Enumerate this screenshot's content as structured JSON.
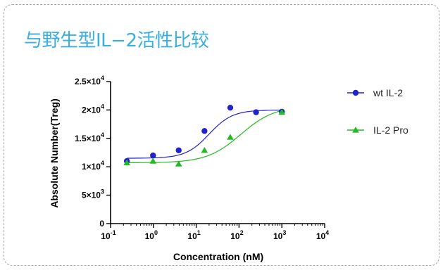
{
  "heading": "与野生型IL−2活性比较",
  "chart_data": {
    "type": "scatter",
    "xlabel": "Concentration (nM)",
    "ylabel": "Absolute Number(Treg)",
    "x_scale": "log",
    "xlim": [
      0.1,
      10000
    ],
    "ylim": [
      0,
      25000
    ],
    "x_ticks": [
      {
        "base": "10",
        "exp": "-1"
      },
      {
        "base": "10",
        "exp": "0"
      },
      {
        "base": "10",
        "exp": "1"
      },
      {
        "base": "10",
        "exp": "2"
      },
      {
        "base": "10",
        "exp": "3"
      },
      {
        "base": "10",
        "exp": "4"
      }
    ],
    "y_ticks": [
      {
        "value": 0,
        "label": "0",
        "exp": ""
      },
      {
        "value": 5000,
        "label": "5×10",
        "exp": "3"
      },
      {
        "value": 10000,
        "label": "1×10",
        "exp": "4"
      },
      {
        "value": 15000,
        "label": "1.5×10",
        "exp": "4"
      },
      {
        "value": 20000,
        "label": "2×10",
        "exp": "4"
      },
      {
        "value": 25000,
        "label": "2.5×10",
        "exp": "4"
      }
    ],
    "legend_position": "right",
    "series": [
      {
        "name": "wt IL-2",
        "color": "#2222cc",
        "marker": "circle",
        "x": [
          0.24,
          0.98,
          3.9,
          15.6,
          62.5,
          250,
          1000
        ],
        "y": [
          11000,
          12000,
          12900,
          16300,
          20400,
          19600,
          19700
        ],
        "fit": {
          "bottom": 11500,
          "top": 20000,
          "ec50": 20,
          "hill": 1.6
        }
      },
      {
        "name": "IL-2 Pro",
        "color": "#22bb22",
        "marker": "triangle",
        "x": [
          0.24,
          0.98,
          3.9,
          15.6,
          62.5,
          1000
        ],
        "y": [
          10700,
          11000,
          10500,
          12900,
          15200,
          19600
        ],
        "fit": {
          "bottom": 10700,
          "top": 20700,
          "ec50": 110,
          "hill": 1.1
        }
      }
    ]
  }
}
